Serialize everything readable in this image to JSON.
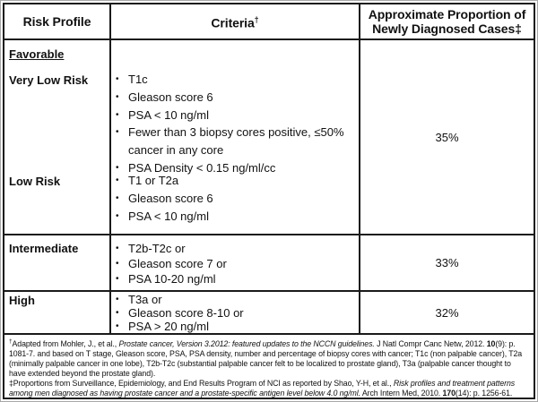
{
  "bullet": "•",
  "colors": {
    "border": "#1a1a1a",
    "text": "#111111",
    "background": "#ffffff",
    "outer_edge": "#a8a8a8"
  },
  "header": {
    "risk_profile": "Risk Profile",
    "criteria": "Criteria",
    "criteria_sup": "†",
    "proportion_lines": [
      "Approximate Proportion of",
      "Newly Diagnosed Cases‡"
    ]
  },
  "favorable": {
    "heading": "Favorable",
    "proportion": "35%",
    "very_low": {
      "label": "Very Low Risk",
      "criteria": [
        [
          "T1c"
        ],
        [
          "Gleason score 6"
        ],
        [
          "PSA < 10 ng/ml"
        ],
        [
          "Fewer than 3 biopsy cores positive, ≤50%",
          "cancer in any core"
        ],
        [
          "PSA Density < 0.15 ng/ml/cc"
        ]
      ]
    },
    "low": {
      "label": "Low Risk",
      "criteria": [
        [
          "T1 or T2a"
        ],
        [
          "Gleason score 6"
        ],
        [
          "PSA < 10 ng/ml"
        ]
      ]
    }
  },
  "intermediate": {
    "label": "Intermediate",
    "proportion": "33%",
    "criteria": [
      [
        "T2b-T2c or"
      ],
      [
        "Gleason score 7 or"
      ],
      [
        "PSA 10-20 ng/ml"
      ]
    ]
  },
  "high": {
    "label": "High",
    "proportion": "32%",
    "criteria": [
      [
        "T3a or"
      ],
      [
        "Gleason score 8-10 or"
      ],
      [
        "PSA > 20 ng/ml"
      ]
    ]
  },
  "footnotes": {
    "first": [
      {
        "t": "†",
        "sup": true
      },
      {
        "t": "Adapted  from Mohler, J., et al., "
      },
      {
        "t": "Prostate cancer, Version 3.2012: featured updates to the NCCN guidelines.",
        "i": true
      },
      {
        "t": " J Natl Compr Canc Netw, 2012. "
      },
      {
        "t": "10",
        "b": true
      },
      {
        "t": "(9): p. 1081-7.  and based on T stage, Gleason score, PSA, PSA density, number and percentage of biopsy cores with cancer; T1c (non palpable cancer), T2a (minimally palpable cancer in one lobe), T2b-T2c (substantial palpable cancer felt to be localized to prostate gland), T3a (palpable cancer thought to have extended beyond the prostate gland)."
      }
    ],
    "second": [
      {
        "t": "‡Proportions from Surveillance, Epidemiology, and End Results Program of NCI as reported by Shao, Y-H, et al., "
      },
      {
        "t": "Risk profiles and treatment patterns among men diagnosed as having prostate cancer and a prostate-specific antigen level below 4.0 ng/ml.",
        "i": true
      },
      {
        "t": " Arch Intern Med, 2010. "
      },
      {
        "t": "170",
        "b": true
      },
      {
        "t": "(14): p. 1256-61."
      }
    ]
  }
}
